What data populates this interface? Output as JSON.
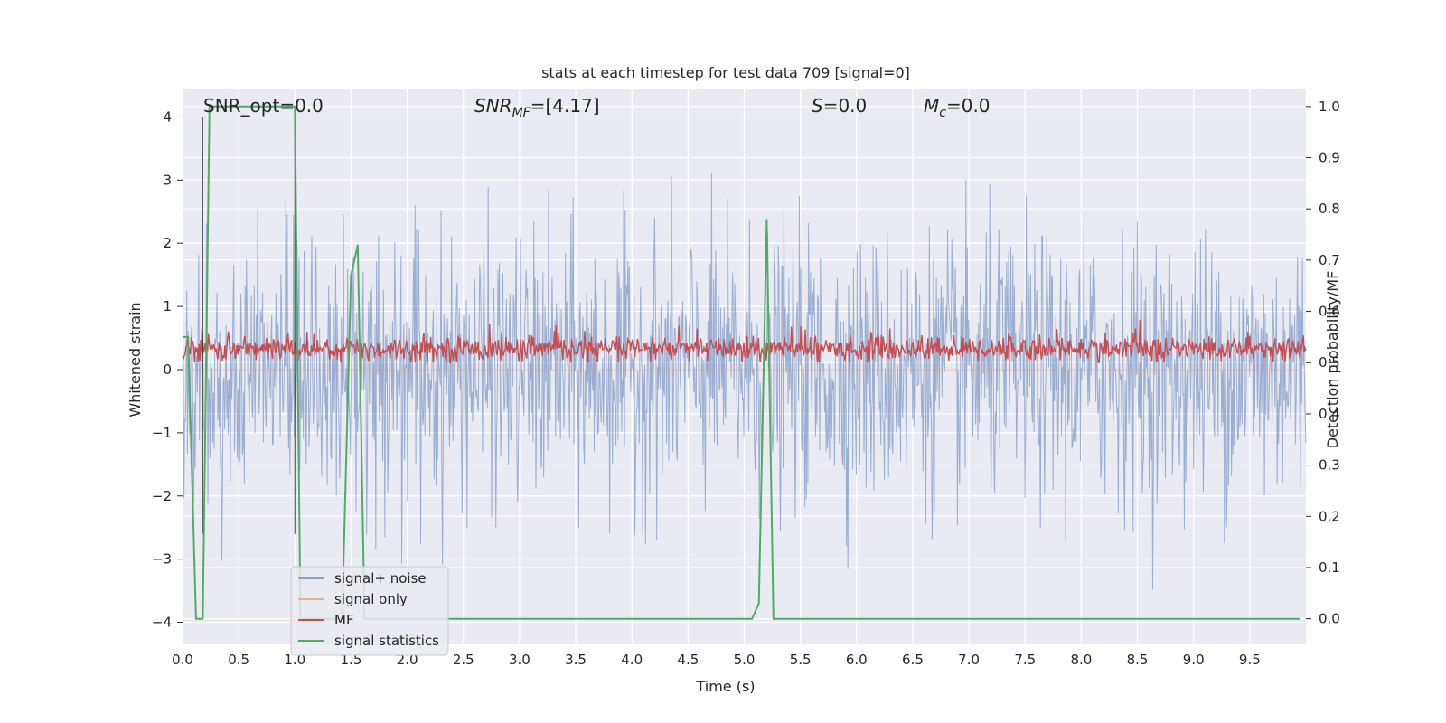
{
  "chart_data": {
    "type": "line",
    "title": "stats at each timestep for test data 709 [signal=0]",
    "xlabel": "Time (s)",
    "ylabel_left": "Whitened strain",
    "ylabel_right": "Detection probability/MF",
    "xlim": [
      0,
      10
    ],
    "ylim_left": [
      -4.35,
      4.45
    ],
    "ylim_right": [
      -0.05,
      1.035
    ],
    "x_ticks": [
      "0.0",
      "0.5",
      "1.0",
      "1.5",
      "2.0",
      "2.5",
      "3.0",
      "3.5",
      "4.0",
      "4.5",
      "5.0",
      "5.5",
      "6.0",
      "6.5",
      "7.0",
      "7.5",
      "8.0",
      "8.5",
      "9.0",
      "9.5"
    ],
    "y_left_ticks": [
      "4",
      "3",
      "2",
      "1",
      "0",
      "−1",
      "−2",
      "−3",
      "−4"
    ],
    "y_right_ticks": [
      "1.0",
      "0.9",
      "0.8",
      "0.7",
      "0.6",
      "0.5",
      "0.4",
      "0.3",
      "0.2",
      "0.1",
      "0.0"
    ],
    "grid": true,
    "legend_position": "lower-left",
    "annotations": {
      "snr_opt": "SNR_opt=0.0",
      "snr_mf_sym": "SNR",
      "snr_mf_sub": "MF",
      "snr_mf_rest": "=[4.17]",
      "s_sym": "S",
      "s_rest": "=0.0",
      "mc_sym": "M",
      "mc_sub": "c",
      "mc_rest": "=0.0"
    },
    "series": [
      {
        "name": "signal+ noise",
        "color": "#4c72b0",
        "axis": "left",
        "description_range": [
          -3.8,
          4.0
        ],
        "noise_sigma": 1.0
      },
      {
        "name": "signal only",
        "color": "#dd8452",
        "axis": "left",
        "values": [
          0
        ]
      },
      {
        "name": "MF",
        "color": "#c44e52",
        "axis": "right",
        "baseline": 0.52,
        "range": [
          0.5,
          0.58
        ]
      },
      {
        "name": "signal statistics",
        "color": "#55a868",
        "axis": "right",
        "x": [
          0.0,
          0.05,
          0.12,
          0.18,
          0.24,
          0.3,
          0.5,
          0.7,
          0.9,
          1.0,
          1.05,
          1.1,
          1.2,
          1.3,
          1.42,
          1.5,
          1.56,
          1.62,
          1.7,
          2.0,
          3.0,
          4.0,
          5.07,
          5.13,
          5.2,
          5.26,
          6.0,
          7.0,
          8.0,
          9.0,
          9.95
        ],
        "values": [
          0.55,
          0.55,
          0.0,
          0.0,
          1.0,
          1.0,
          1.0,
          1.0,
          1.0,
          1.0,
          0.0,
          0.0,
          0.0,
          0.0,
          0.0,
          0.67,
          0.73,
          0.0,
          0.0,
          0.0,
          0.0,
          0.0,
          0.0,
          0.03,
          0.78,
          0.0,
          0.0,
          0.0,
          0.0,
          0.0,
          0.0
        ]
      }
    ],
    "vlines": [
      0.18,
      1.0
    ]
  }
}
